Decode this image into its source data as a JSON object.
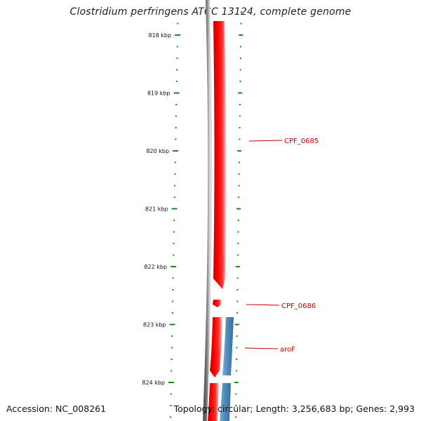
{
  "title": "Clostridium perfringens ATCC 13124, complete genome",
  "footer": {
    "accession": "Accession: NC_008261",
    "topology": "Topology: circular; Length: 3,256,683 bp; Genes: 2,993"
  },
  "ruler": {
    "labels": [
      "818 kbp",
      "819 kbp",
      "820 kbp",
      "821 kbp",
      "822 kbp",
      "823 kbp",
      "824 kbp"
    ],
    "tick_color": "#1a8a1a"
  },
  "colors": {
    "backbone": "#7a7a7a",
    "forward_gene": "#ff0000",
    "reverse_gene": "#4f8fc0",
    "gene_label": "#cc0000"
  },
  "genes": [
    {
      "name": "CPF_0685",
      "strand": "forward"
    },
    {
      "name": "CPF_0686",
      "strand": "forward"
    },
    {
      "name": "aroF",
      "strand": "reverse"
    }
  ]
}
